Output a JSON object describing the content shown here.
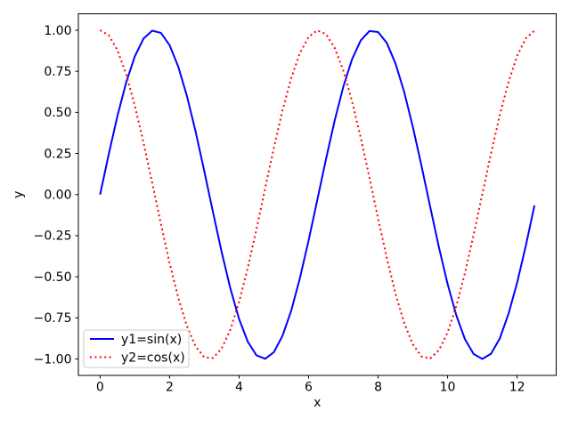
{
  "figure": {
    "background": "#ffffff"
  },
  "chart_data": {
    "type": "line",
    "title": "",
    "xlabel": "x",
    "ylabel": "y",
    "xlim": [
      -0.625,
      13.125
    ],
    "ylim": [
      -1.1,
      1.1
    ],
    "grid": false,
    "axis_color": "#000000",
    "xticks": [
      0,
      2,
      4,
      6,
      8,
      10,
      12
    ],
    "xtick_labels": [
      "0",
      "2",
      "4",
      "6",
      "8",
      "10",
      "12"
    ],
    "yticks": [
      -1.0,
      -0.75,
      -0.5,
      -0.25,
      0,
      0.25,
      0.5,
      0.75,
      1.0
    ],
    "ytick_labels": [
      "−1.00",
      "−0.75",
      "−0.50",
      "−0.25",
      "0.00",
      "0.25",
      "0.50",
      "0.75",
      "1.00"
    ],
    "legend": {
      "position": "lower left",
      "border_color": "#cccccc",
      "background": "#ffffff"
    },
    "x": [
      0,
      0.25,
      0.5,
      0.75,
      1,
      1.25,
      1.5,
      1.75,
      2,
      2.25,
      2.5,
      2.75,
      3,
      3.25,
      3.5,
      3.75,
      4,
      4.25,
      4.5,
      4.75,
      5,
      5.25,
      5.5,
      5.75,
      6,
      6.25,
      6.5,
      6.75,
      7,
      7.25,
      7.5,
      7.75,
      8,
      8.25,
      8.5,
      8.75,
      9,
      9.25,
      9.5,
      9.75,
      10,
      10.25,
      10.5,
      10.75,
      11,
      11.25,
      11.5,
      11.75,
      12,
      12.25,
      12.5
    ],
    "series": [
      {
        "name": "y1=sin(x)",
        "color": "#0000ff",
        "style": "solid",
        "values": [
          0,
          0.247,
          0.479,
          0.682,
          0.841,
          0.949,
          0.997,
          0.984,
          0.909,
          0.778,
          0.599,
          0.382,
          0.141,
          -0.108,
          -0.351,
          -0.572,
          -0.757,
          -0.895,
          -0.978,
          -0.999,
          -0.959,
          -0.859,
          -0.706,
          -0.508,
          -0.279,
          -0.033,
          0.215,
          0.45,
          0.657,
          0.823,
          0.938,
          0.995,
          0.989,
          0.923,
          0.798,
          0.625,
          0.412,
          0.174,
          -0.075,
          -0.32,
          -0.544,
          -0.734,
          -0.88,
          -0.97,
          -1,
          -0.968,
          -0.876,
          -0.727,
          -0.537,
          -0.312,
          -0.066
        ]
      },
      {
        "name": "y2=cos(x)",
        "color": "#ff0000",
        "style": "dotted",
        "values": [
          1,
          0.969,
          0.878,
          0.732,
          0.54,
          0.315,
          0.071,
          -0.178,
          -0.416,
          -0.628,
          -0.801,
          -0.924,
          -0.99,
          -0.994,
          -0.936,
          -0.821,
          -0.654,
          -0.446,
          -0.211,
          0.038,
          0.284,
          0.512,
          0.709,
          0.861,
          0.96,
          0.999,
          0.977,
          0.893,
          0.754,
          0.568,
          0.347,
          0.104,
          -0.146,
          -0.385,
          -0.602,
          -0.781,
          -0.911,
          -0.985,
          -0.997,
          -0.947,
          -0.839,
          -0.679,
          -0.476,
          -0.243,
          0.004,
          0.251,
          0.482,
          0.683,
          0.844,
          0.95,
          0.998
        ]
      }
    ]
  }
}
